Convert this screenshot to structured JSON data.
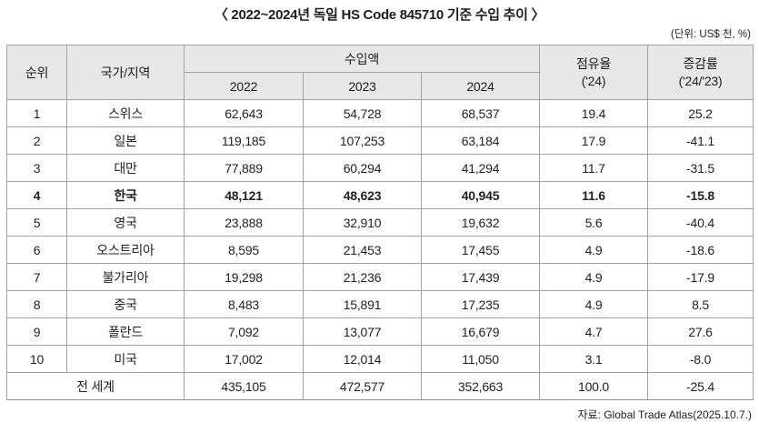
{
  "title": "〈 2022~2024년 독일 HS Code 845710 기준 수입 추이 〉",
  "unit_note": "(단위: US$ 천, %)",
  "source_note": "자료: Global Trade Atlas(2025.10.7.)",
  "table": {
    "col_rank": "순위",
    "col_country": "국가/지역",
    "col_import_group": "수입액",
    "col_share": "점유율\n('24)",
    "col_change": "증감률\n('24/'23)",
    "years": [
      "2022",
      "2023",
      "2024"
    ],
    "rows": [
      {
        "rank": "1",
        "country": "스위스",
        "v2022": "62,643",
        "v2023": "54,728",
        "v2024": "68,537",
        "share": "19.4",
        "change": "25.2",
        "bold": false
      },
      {
        "rank": "2",
        "country": "일본",
        "v2022": "119,185",
        "v2023": "107,253",
        "v2024": "63,184",
        "share": "17.9",
        "change": "-41.1",
        "bold": false
      },
      {
        "rank": "3",
        "country": "대만",
        "v2022": "77,889",
        "v2023": "60,294",
        "v2024": "41,294",
        "share": "11.7",
        "change": "-31.5",
        "bold": false
      },
      {
        "rank": "4",
        "country": "한국",
        "v2022": "48,121",
        "v2023": "48,623",
        "v2024": "40,945",
        "share": "11.6",
        "change": "-15.8",
        "bold": true
      },
      {
        "rank": "5",
        "country": "영국",
        "v2022": "23,888",
        "v2023": "32,910",
        "v2024": "19,632",
        "share": "5.6",
        "change": "-40.4",
        "bold": false
      },
      {
        "rank": "6",
        "country": "오스트리아",
        "v2022": "8,595",
        "v2023": "21,453",
        "v2024": "17,455",
        "share": "4.9",
        "change": "-18.6",
        "bold": false
      },
      {
        "rank": "7",
        "country": "불가리아",
        "v2022": "19,298",
        "v2023": "21,236",
        "v2024": "17,439",
        "share": "4.9",
        "change": "-17.9",
        "bold": false
      },
      {
        "rank": "8",
        "country": "중국",
        "v2022": "8,483",
        "v2023": "15,891",
        "v2024": "17,235",
        "share": "4.9",
        "change": "8.5",
        "bold": false
      },
      {
        "rank": "9",
        "country": "폴란드",
        "v2022": "7,092",
        "v2023": "13,077",
        "v2024": "16,679",
        "share": "4.7",
        "change": "27.6",
        "bold": false
      },
      {
        "rank": "10",
        "country": "미국",
        "v2022": "17,002",
        "v2023": "12,014",
        "v2024": "11,050",
        "share": "3.1",
        "change": "-8.0",
        "bold": false
      }
    ],
    "total": {
      "label": "전 세계",
      "v2022": "435,105",
      "v2023": "472,577",
      "v2024": "352,663",
      "share": "100.0",
      "change": "-25.4"
    }
  },
  "chart_data": {
    "type": "table",
    "title": "2022~2024년 독일 HS Code 845710 기준 수입 추이",
    "unit": "US$ 천, %",
    "columns": [
      "순위",
      "국가/지역",
      "수입액 2022",
      "수입액 2023",
      "수입액 2024",
      "점유율 ('24)",
      "증감률 ('24/'23)"
    ],
    "rows": [
      [
        1,
        "스위스",
        62643,
        54728,
        68537,
        19.4,
        25.2
      ],
      [
        2,
        "일본",
        119185,
        107253,
        63184,
        17.9,
        -41.1
      ],
      [
        3,
        "대만",
        77889,
        60294,
        41294,
        11.7,
        -31.5
      ],
      [
        4,
        "한국",
        48121,
        48623,
        40945,
        11.6,
        -15.8
      ],
      [
        5,
        "영국",
        23888,
        32910,
        19632,
        5.6,
        -40.4
      ],
      [
        6,
        "오스트리아",
        8595,
        21453,
        17455,
        4.9,
        -18.6
      ],
      [
        7,
        "불가리아",
        19298,
        21236,
        17439,
        4.9,
        -17.9
      ],
      [
        8,
        "중국",
        8483,
        15891,
        17235,
        4.9,
        8.5
      ],
      [
        9,
        "폴란드",
        7092,
        13077,
        16679,
        4.7,
        27.6
      ],
      [
        10,
        "미국",
        17002,
        12014,
        11050,
        3.1,
        -8.0
      ]
    ],
    "total_row": {
      "label": "전 세계",
      "values": [
        435105,
        472577,
        352663,
        100.0,
        -25.4
      ]
    },
    "source": "Global Trade Atlas(2025.10.7.)",
    "highlighted_row": "한국"
  }
}
